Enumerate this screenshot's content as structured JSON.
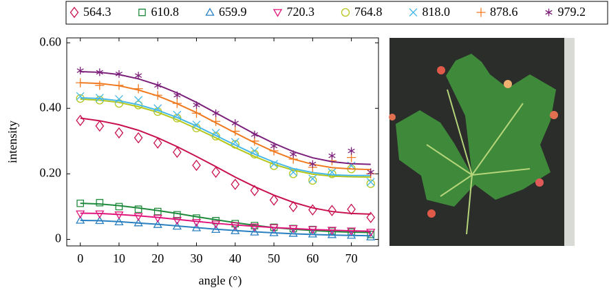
{
  "chart_data": {
    "type": "scatter",
    "xlabel": "angle (°)",
    "ylabel": "intensity",
    "x": [
      0,
      5,
      10,
      15,
      20,
      25,
      30,
      35,
      40,
      45,
      50,
      55,
      60,
      65,
      70,
      75
    ],
    "xlim": [
      -3.5,
      77
    ],
    "ylim": [
      -0.02,
      0.615
    ],
    "xticks": [
      0,
      10,
      20,
      30,
      40,
      50,
      60,
      70
    ],
    "yticks": [
      0,
      {
        "value": 0.2,
        "label": "0.20"
      },
      {
        "value": 0.4,
        "label": "0.40"
      },
      {
        "value": 0.6,
        "label": "0.60"
      }
    ],
    "legend": "top",
    "series": [
      {
        "name": "564.3",
        "color": "#c8104f",
        "marker": "diamond",
        "values": [
          0.363,
          0.346,
          0.325,
          0.31,
          0.294,
          0.266,
          0.226,
          0.205,
          0.168,
          0.149,
          0.12,
          0.1,
          0.09,
          0.088,
          0.092,
          0.067
        ],
        "fit": [
          0.37,
          0.362,
          0.35,
          0.333,
          0.31,
          0.283,
          0.253,
          0.222,
          0.19,
          0.161,
          0.135,
          0.113,
          0.096,
          0.085,
          0.079,
          0.077
        ]
      },
      {
        "name": "610.8",
        "color": "#1e8a3c",
        "marker": "square",
        "values": [
          0.11,
          0.112,
          0.1,
          0.092,
          0.085,
          0.075,
          0.065,
          0.057,
          0.048,
          0.042,
          0.037,
          0.033,
          0.03,
          0.025,
          0.022,
          0.015
        ],
        "fit": [
          0.11,
          0.108,
          0.103,
          0.096,
          0.088,
          0.079,
          0.069,
          0.06,
          0.051,
          0.043,
          0.036,
          0.031,
          0.027,
          0.024,
          0.022,
          0.021
        ]
      },
      {
        "name": "659.9",
        "color": "#2a7fc0",
        "marker": "triangle",
        "values": [
          0.058,
          0.057,
          0.053,
          0.05,
          0.045,
          0.04,
          0.035,
          0.03,
          0.026,
          0.022,
          0.02,
          0.018,
          0.016,
          0.014,
          0.012,
          0.007
        ],
        "fit": [
          0.058,
          0.057,
          0.054,
          0.05,
          0.046,
          0.041,
          0.036,
          0.031,
          0.027,
          0.023,
          0.02,
          0.017,
          0.015,
          0.013,
          0.012,
          0.011
        ]
      },
      {
        "name": "720.3",
        "color": "#e0147a",
        "marker": "triangle-down",
        "values": [
          0.078,
          0.078,
          0.075,
          0.07,
          0.065,
          0.058,
          0.052,
          0.047,
          0.042,
          0.038,
          0.036,
          0.033,
          0.03,
          0.028,
          0.026,
          0.022
        ],
        "fit": [
          0.08,
          0.079,
          0.076,
          0.072,
          0.067,
          0.061,
          0.055,
          0.049,
          0.044,
          0.04,
          0.036,
          0.033,
          0.03,
          0.028,
          0.026,
          0.025
        ]
      },
      {
        "name": "764.8",
        "color": "#b5c61a",
        "marker": "circle",
        "values": [
          0.43,
          0.425,
          0.415,
          0.41,
          0.39,
          0.37,
          0.34,
          0.315,
          0.29,
          0.26,
          0.225,
          0.2,
          0.18,
          0.2,
          0.215,
          0.17
        ],
        "fit": [
          0.428,
          0.425,
          0.418,
          0.405,
          0.388,
          0.365,
          0.338,
          0.31,
          0.28,
          0.253,
          0.229,
          0.211,
          0.199,
          0.193,
          0.191,
          0.19
        ]
      },
      {
        "name": "818.0",
        "color": "#45b8e8",
        "marker": "x",
        "values": [
          0.437,
          0.432,
          0.428,
          0.425,
          0.4,
          0.38,
          0.35,
          0.325,
          0.297,
          0.27,
          0.23,
          0.205,
          0.185,
          0.205,
          0.225,
          0.175
        ],
        "fit": [
          0.432,
          0.43,
          0.423,
          0.411,
          0.394,
          0.372,
          0.346,
          0.317,
          0.288,
          0.26,
          0.236,
          0.216,
          0.204,
          0.197,
          0.195,
          0.195
        ]
      },
      {
        "name": "878.6",
        "color": "#f07a20",
        "marker": "plus",
        "values": [
          0.478,
          0.47,
          0.47,
          0.46,
          0.44,
          0.415,
          0.385,
          0.36,
          0.33,
          0.3,
          0.27,
          0.245,
          0.22,
          0.24,
          0.25,
          0.2
        ],
        "fit": [
          0.478,
          0.476,
          0.469,
          0.456,
          0.438,
          0.414,
          0.387,
          0.356,
          0.325,
          0.295,
          0.268,
          0.245,
          0.229,
          0.219,
          0.215,
          0.213
        ]
      },
      {
        "name": "979.2",
        "color": "#7b1f7a",
        "marker": "star",
        "values": [
          0.515,
          0.51,
          0.505,
          0.5,
          0.47,
          0.44,
          0.41,
          0.385,
          0.355,
          0.32,
          0.285,
          0.26,
          0.23,
          0.255,
          0.27,
          0.205
        ],
        "fit": [
          0.512,
          0.51,
          0.503,
          0.49,
          0.471,
          0.447,
          0.418,
          0.386,
          0.354,
          0.322,
          0.293,
          0.268,
          0.249,
          0.237,
          0.231,
          0.229
        ]
      }
    ]
  }
}
